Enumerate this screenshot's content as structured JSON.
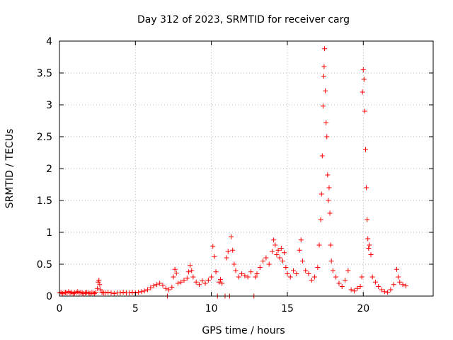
{
  "chart_data": {
    "type": "scatter",
    "title": "Day 312 of 2023, SRMTID for receiver carg",
    "xlabel": "GPS time / hours",
    "ylabel": "SRMTID / TECUs",
    "xlim": [
      0,
      24.6
    ],
    "ylim": [
      0,
      4
    ],
    "x_ticks": [
      0,
      5,
      10,
      15,
      20
    ],
    "y_ticks": [
      0,
      0.5,
      1,
      1.5,
      2,
      2.5,
      3,
      3.5,
      4
    ],
    "x_tick_labels": [
      "0",
      "5",
      "10",
      "15",
      "20"
    ],
    "y_tick_labels": [
      "0",
      "0.5",
      "1",
      "1.5",
      "2",
      "2.5",
      "3",
      "3.5",
      "4"
    ],
    "grid": true,
    "marker": "+",
    "color": "#ff0000",
    "series": [
      {
        "name": "SRMTID",
        "points": [
          [
            0.0,
            0.05
          ],
          [
            0.1,
            0.06
          ],
          [
            0.2,
            0.04
          ],
          [
            0.3,
            0.05
          ],
          [
            0.4,
            0.06
          ],
          [
            0.5,
            0.05
          ],
          [
            0.6,
            0.07
          ],
          [
            0.7,
            0.05
          ],
          [
            0.8,
            0.06
          ],
          [
            0.9,
            0.04
          ],
          [
            1.0,
            0.05
          ],
          [
            1.1,
            0.06
          ],
          [
            1.2,
            0.07
          ],
          [
            1.3,
            0.05
          ],
          [
            1.4,
            0.06
          ],
          [
            1.5,
            0.05
          ],
          [
            1.6,
            0.04
          ],
          [
            1.7,
            0.05
          ],
          [
            1.8,
            0.06
          ],
          [
            1.9,
            0.05
          ],
          [
            2.0,
            0.04
          ],
          [
            2.1,
            0.05
          ],
          [
            2.2,
            0.05
          ],
          [
            2.3,
            0.04
          ],
          [
            2.4,
            0.06
          ],
          [
            2.5,
            0.12
          ],
          [
            2.55,
            0.22
          ],
          [
            2.6,
            0.25
          ],
          [
            2.65,
            0.18
          ],
          [
            2.7,
            0.1
          ],
          [
            2.8,
            0.06
          ],
          [
            2.9,
            0.05
          ],
          [
            3.0,
            0.05
          ],
          [
            3.2,
            0.06
          ],
          [
            3.4,
            0.05
          ],
          [
            3.6,
            0.04
          ],
          [
            3.8,
            0.05
          ],
          [
            4.0,
            0.05
          ],
          [
            4.2,
            0.06
          ],
          [
            4.4,
            0.05
          ],
          [
            4.6,
            0.05
          ],
          [
            4.8,
            0.06
          ],
          [
            5.0,
            0.05
          ],
          [
            5.2,
            0.06
          ],
          [
            5.4,
            0.07
          ],
          [
            5.6,
            0.08
          ],
          [
            5.8,
            0.1
          ],
          [
            6.0,
            0.13
          ],
          [
            6.2,
            0.16
          ],
          [
            6.4,
            0.18
          ],
          [
            6.6,
            0.2
          ],
          [
            6.8,
            0.17
          ],
          [
            7.0,
            0.12
          ],
          [
            7.1,
            0.0
          ],
          [
            7.2,
            0.1
          ],
          [
            7.4,
            0.14
          ],
          [
            7.5,
            0.3
          ],
          [
            7.6,
            0.42
          ],
          [
            7.7,
            0.36
          ],
          [
            7.8,
            0.2
          ],
          [
            8.0,
            0.22
          ],
          [
            8.2,
            0.25
          ],
          [
            8.4,
            0.28
          ],
          [
            8.5,
            0.38
          ],
          [
            8.6,
            0.48
          ],
          [
            8.7,
            0.4
          ],
          [
            8.8,
            0.3
          ],
          [
            9.0,
            0.22
          ],
          [
            9.2,
            0.18
          ],
          [
            9.4,
            0.24
          ],
          [
            9.6,
            0.2
          ],
          [
            9.8,
            0.25
          ],
          [
            10.0,
            0.3
          ],
          [
            10.1,
            0.78
          ],
          [
            10.2,
            0.62
          ],
          [
            10.3,
            0.38
          ],
          [
            10.4,
            0.0
          ],
          [
            10.5,
            0.22
          ],
          [
            10.6,
            0.26
          ],
          [
            10.7,
            0.2
          ],
          [
            10.9,
            0.0
          ],
          [
            11.0,
            0.6
          ],
          [
            11.1,
            0.7
          ],
          [
            11.2,
            0.0
          ],
          [
            11.3,
            0.93
          ],
          [
            11.4,
            0.72
          ],
          [
            11.5,
            0.5
          ],
          [
            11.6,
            0.4
          ],
          [
            11.8,
            0.3
          ],
          [
            12.0,
            0.35
          ],
          [
            12.2,
            0.32
          ],
          [
            12.4,
            0.3
          ],
          [
            12.6,
            0.38
          ],
          [
            12.8,
            0.0
          ],
          [
            12.9,
            0.3
          ],
          [
            13.0,
            0.35
          ],
          [
            13.2,
            0.45
          ],
          [
            13.4,
            0.55
          ],
          [
            13.6,
            0.6
          ],
          [
            13.8,
            0.5
          ],
          [
            14.0,
            0.7
          ],
          [
            14.1,
            0.88
          ],
          [
            14.2,
            0.8
          ],
          [
            14.3,
            0.65
          ],
          [
            14.4,
            0.72
          ],
          [
            14.5,
            0.6
          ],
          [
            14.6,
            0.75
          ],
          [
            14.7,
            0.55
          ],
          [
            14.8,
            0.68
          ],
          [
            14.9,
            0.45
          ],
          [
            15.0,
            0.35
          ],
          [
            15.2,
            0.3
          ],
          [
            15.4,
            0.4
          ],
          [
            15.6,
            0.35
          ],
          [
            15.8,
            0.72
          ],
          [
            15.9,
            0.88
          ],
          [
            16.0,
            0.55
          ],
          [
            16.2,
            0.4
          ],
          [
            16.4,
            0.35
          ],
          [
            16.6,
            0.25
          ],
          [
            16.8,
            0.3
          ],
          [
            17.0,
            0.45
          ],
          [
            17.1,
            0.8
          ],
          [
            17.2,
            1.2
          ],
          [
            17.25,
            1.6
          ],
          [
            17.3,
            2.2
          ],
          [
            17.35,
            2.98
          ],
          [
            17.4,
            3.45
          ],
          [
            17.42,
            3.6
          ],
          [
            17.45,
            3.88
          ],
          [
            17.5,
            3.22
          ],
          [
            17.55,
            2.72
          ],
          [
            17.6,
            2.5
          ],
          [
            17.65,
            1.9
          ],
          [
            17.7,
            1.5
          ],
          [
            17.75,
            1.7
          ],
          [
            17.8,
            1.3
          ],
          [
            17.85,
            0.8
          ],
          [
            17.9,
            0.55
          ],
          [
            18.0,
            0.4
          ],
          [
            18.2,
            0.3
          ],
          [
            18.4,
            0.2
          ],
          [
            18.6,
            0.15
          ],
          [
            18.8,
            0.25
          ],
          [
            19.0,
            0.4
          ],
          [
            19.2,
            0.1
          ],
          [
            19.4,
            0.08
          ],
          [
            19.6,
            0.12
          ],
          [
            19.8,
            0.15
          ],
          [
            19.9,
            0.3
          ],
          [
            19.95,
            3.2
          ],
          [
            20.0,
            3.55
          ],
          [
            20.05,
            3.4
          ],
          [
            20.1,
            2.9
          ],
          [
            20.15,
            2.3
          ],
          [
            20.2,
            1.7
          ],
          [
            20.25,
            1.2
          ],
          [
            20.3,
            0.9
          ],
          [
            20.35,
            0.75
          ],
          [
            20.4,
            0.8
          ],
          [
            20.5,
            0.65
          ],
          [
            20.6,
            0.3
          ],
          [
            20.8,
            0.22
          ],
          [
            21.0,
            0.15
          ],
          [
            21.2,
            0.1
          ],
          [
            21.4,
            0.07
          ],
          [
            21.6,
            0.06
          ],
          [
            21.8,
            0.1
          ],
          [
            22.0,
            0.18
          ],
          [
            22.2,
            0.42
          ],
          [
            22.3,
            0.3
          ],
          [
            22.4,
            0.22
          ],
          [
            22.6,
            0.18
          ],
          [
            22.8,
            0.16
          ]
        ]
      }
    ]
  }
}
